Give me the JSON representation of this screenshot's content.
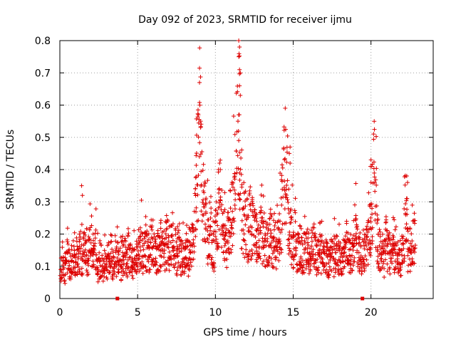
{
  "chart_data": {
    "type": "scatter",
    "title": "Day 092 of 2023, SRMTID for receiver ijmu",
    "xlabel": "GPS time / hours",
    "ylabel": "SRMTID / TECUs",
    "xlim": [
      0,
      24
    ],
    "ylim": [
      0,
      0.8
    ],
    "grid": true,
    "marker": "+",
    "x_ticks": [
      0,
      5,
      10,
      15,
      20
    ],
    "x_tick_labels": [
      "0",
      "5",
      "10",
      "15",
      "20"
    ],
    "y_ticks": [
      0,
      0.1,
      0.2,
      0.3,
      0.4,
      0.5,
      0.6,
      0.7,
      0.8
    ],
    "y_tick_labels": [
      "0",
      "0.1",
      "0.2",
      "0.3",
      "0.4",
      "0.5",
      "0.6",
      "0.7",
      "0.8"
    ],
    "colors": {
      "points": "#dd0000",
      "grid": "#a0a0a0",
      "axes": "#000000",
      "gap_markers": "#dd0000"
    },
    "gap_markers_x": [
      3.7,
      19.45
    ],
    "series": [
      {
        "name": "SRMTID",
        "x": [
          0.0,
          0.1,
          0.2,
          0.3,
          0.4,
          0.5,
          0.6,
          0.7,
          0.8,
          0.9,
          1.0,
          1.1,
          1.2,
          1.3,
          1.4,
          1.5,
          1.6,
          1.7,
          1.8,
          1.9,
          2.0,
          2.1,
          2.2,
          2.3,
          2.4,
          2.5,
          2.6,
          2.7,
          2.8,
          2.9,
          3.0,
          3.1,
          3.2,
          3.3,
          3.4,
          3.5,
          3.6,
          3.7,
          3.8,
          3.9,
          4.0,
          4.1,
          4.2,
          4.3,
          4.4,
          4.5,
          4.6,
          4.7,
          4.8,
          4.9,
          5.0,
          5.1,
          5.2,
          5.3,
          5.4,
          5.5,
          5.6,
          5.7,
          5.8,
          5.9,
          6.0,
          6.1,
          6.2,
          6.3,
          6.4,
          6.5,
          6.6,
          6.7,
          6.8,
          6.9,
          7.0,
          7.1,
          7.2,
          7.3,
          7.4,
          7.5,
          7.6,
          7.7,
          7.8,
          7.9,
          8.0,
          8.1,
          8.2,
          8.3,
          8.4,
          8.5,
          8.6,
          8.7,
          8.8,
          8.9,
          9.0,
          9.1,
          9.2,
          9.3,
          9.4,
          9.5,
          9.6,
          9.7,
          9.8,
          9.9,
          10.0,
          10.1,
          10.2,
          10.3,
          10.4,
          10.5,
          10.6,
          10.7,
          10.8,
          10.9,
          11.0,
          11.1,
          11.2,
          11.3,
          11.4,
          11.5,
          11.6,
          11.7,
          11.8,
          11.9,
          12.0,
          12.1,
          12.2,
          12.3,
          12.4,
          12.5,
          12.6,
          12.7,
          12.8,
          12.9,
          13.0,
          13.1,
          13.2,
          13.3,
          13.4,
          13.5,
          13.6,
          13.7,
          13.8,
          13.9,
          14.0,
          14.1,
          14.2,
          14.3,
          14.4,
          14.5,
          14.6,
          14.7,
          14.8,
          14.9,
          15.0,
          15.1,
          15.2,
          15.3,
          15.4,
          15.5,
          15.6,
          15.7,
          15.8,
          15.9,
          16.0,
          16.1,
          16.2,
          16.3,
          16.4,
          16.5,
          16.6,
          16.7,
          16.8,
          16.9,
          17.0,
          17.1,
          17.2,
          17.3,
          17.4,
          17.5,
          17.6,
          17.7,
          17.8,
          17.9,
          18.0,
          18.1,
          18.2,
          18.3,
          18.4,
          18.5,
          18.6,
          18.7,
          18.8,
          18.9,
          19.0,
          19.1,
          19.2,
          19.3,
          19.4,
          19.5,
          19.6,
          19.7,
          19.8,
          19.9,
          20.0,
          20.1,
          20.2,
          20.3,
          20.4,
          20.5,
          20.6,
          20.7,
          20.8,
          20.9,
          21.0,
          21.1,
          21.2,
          21.3,
          21.4,
          21.5,
          21.6,
          21.7,
          21.8,
          21.9,
          22.0,
          22.1,
          22.2,
          22.3,
          22.4,
          22.5,
          22.6,
          22.7,
          22.8
        ],
        "y": [
          0.06,
          0.09,
          0.12,
          0.08,
          0.1,
          0.13,
          0.11,
          0.09,
          0.14,
          0.12,
          0.1,
          0.11,
          0.13,
          0.15,
          0.12,
          0.14,
          0.17,
          0.15,
          0.13,
          0.16,
          0.18,
          0.14,
          0.12,
          0.15,
          0.11,
          0.09,
          0.1,
          0.12,
          0.08,
          0.11,
          0.1,
          0.13,
          0.12,
          0.14,
          0.1,
          0.09,
          0.12,
          0.13,
          0.11,
          0.1,
          0.14,
          0.12,
          0.13,
          0.11,
          0.15,
          0.14,
          0.12,
          0.1,
          0.11,
          0.13,
          0.12,
          0.15,
          0.16,
          0.14,
          0.13,
          0.17,
          0.15,
          0.14,
          0.16,
          0.18,
          0.17,
          0.15,
          0.13,
          0.16,
          0.14,
          0.17,
          0.15,
          0.16,
          0.14,
          0.18,
          0.15,
          0.17,
          0.16,
          0.14,
          0.15,
          0.13,
          0.16,
          0.15,
          0.13,
          0.12,
          0.11,
          0.14,
          0.13,
          0.12,
          0.15,
          0.17,
          0.22,
          0.28,
          0.35,
          0.42,
          0.48,
          0.38,
          0.3,
          0.25,
          0.22,
          0.19,
          0.18,
          0.2,
          0.17,
          0.15,
          0.19,
          0.22,
          0.28,
          0.32,
          0.25,
          0.2,
          0.18,
          0.16,
          0.19,
          0.21,
          0.22,
          0.25,
          0.3,
          0.45,
          0.65,
          0.55,
          0.35,
          0.28,
          0.25,
          0.23,
          0.22,
          0.2,
          0.24,
          0.21,
          0.22,
          0.2,
          0.19,
          0.18,
          0.17,
          0.2,
          0.18,
          0.19,
          0.17,
          0.16,
          0.18,
          0.2,
          0.18,
          0.17,
          0.16,
          0.15,
          0.17,
          0.19,
          0.22,
          0.3,
          0.38,
          0.42,
          0.36,
          0.25,
          0.2,
          0.18,
          0.16,
          0.17,
          0.15,
          0.14,
          0.16,
          0.15,
          0.13,
          0.14,
          0.16,
          0.15,
          0.14,
          0.13,
          0.15,
          0.16,
          0.14,
          0.12,
          0.13,
          0.15,
          0.14,
          0.12,
          0.11,
          0.13,
          0.12,
          0.1,
          0.11,
          0.13,
          0.12,
          0.14,
          0.15,
          0.13,
          0.12,
          0.11,
          0.13,
          0.16,
          0.18,
          0.15,
          0.13,
          0.12,
          0.14,
          0.17,
          0.22,
          0.16,
          0.14,
          0.13,
          0.12,
          0.15,
          0.14,
          0.16,
          0.18,
          0.2,
          0.22,
          0.25,
          0.38,
          0.28,
          0.2,
          0.17,
          0.15,
          0.13,
          0.12,
          0.15,
          0.17,
          0.14,
          0.13,
          0.12,
          0.15,
          0.14,
          0.16,
          0.13,
          0.11,
          0.12,
          0.14,
          0.2,
          0.3,
          0.22,
          0.15,
          0.12,
          0.14,
          0.17,
          0.19
        ],
        "spikes": [
          {
            "x": 9.0,
            "y": 0.6
          },
          {
            "x": 8.9,
            "y": 0.57
          },
          {
            "x": 9.05,
            "y": 0.55
          },
          {
            "x": 11.5,
            "y": 0.8
          },
          {
            "x": 11.55,
            "y": 0.78
          },
          {
            "x": 11.5,
            "y": 0.75
          },
          {
            "x": 11.55,
            "y": 0.71
          },
          {
            "x": 11.6,
            "y": 0.7
          },
          {
            "x": 11.55,
            "y": 0.66
          },
          {
            "x": 11.6,
            "y": 0.63
          },
          {
            "x": 11.5,
            "y": 0.57
          },
          {
            "x": 11.45,
            "y": 0.55
          },
          {
            "x": 11.5,
            "y": 0.49
          },
          {
            "x": 14.8,
            "y": 0.47
          },
          {
            "x": 14.75,
            "y": 0.45
          },
          {
            "x": 14.8,
            "y": 0.42
          },
          {
            "x": 20.0,
            "y": 0.43
          },
          {
            "x": 20.05,
            "y": 0.41
          },
          {
            "x": 20.0,
            "y": 0.36
          },
          {
            "x": 1.4,
            "y": 0.35
          },
          {
            "x": 1.45,
            "y": 0.32
          },
          {
            "x": 22.3,
            "y": 0.38
          },
          {
            "x": 22.35,
            "y": 0.36
          }
        ]
      }
    ]
  }
}
